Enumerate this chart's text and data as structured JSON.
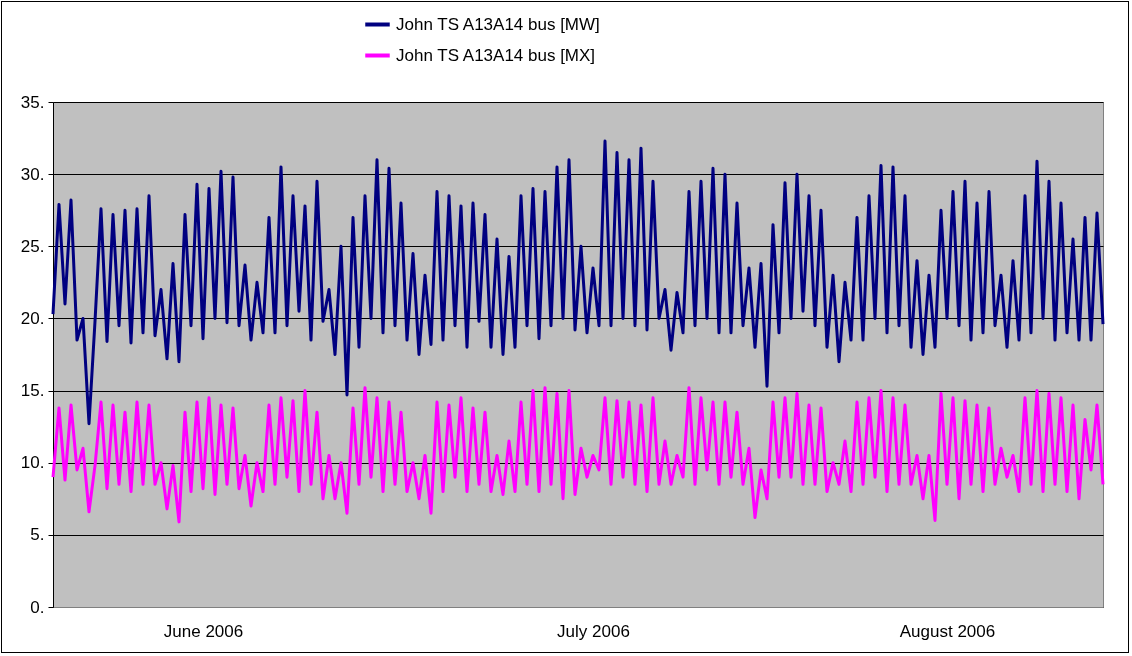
{
  "chart_data": {
    "type": "line",
    "categories": [
      null,
      null,
      null,
      null,
      null,
      null,
      null,
      null,
      null,
      null,
      null,
      null,
      null,
      null,
      null,
      null,
      null,
      null,
      null,
      null,
      null,
      null,
      null,
      null,
      null,
      "June 2006",
      null,
      null,
      null,
      null,
      null,
      null,
      null,
      null,
      null,
      null,
      null,
      null,
      null,
      null,
      null,
      null,
      null,
      null,
      null,
      null,
      null,
      null,
      null,
      null,
      null,
      null,
      null,
      null,
      null,
      null,
      null,
      null,
      null,
      null,
      null,
      null,
      null,
      null,
      null,
      null,
      null,
      null,
      null,
      null,
      null,
      null,
      null,
      null,
      null,
      null,
      null,
      null,
      null,
      null,
      null,
      null,
      null,
      null,
      null,
      null,
      null,
      null,
      null,
      null,
      "July 2006",
      null,
      null,
      null,
      null,
      null,
      null,
      null,
      null,
      null,
      null,
      null,
      null,
      null,
      null,
      null,
      null,
      null,
      null,
      null,
      null,
      null,
      null,
      null,
      null,
      null,
      null,
      null,
      null,
      null,
      null,
      null,
      null,
      null,
      null,
      null,
      null,
      null,
      null,
      null,
      null,
      null,
      null,
      null,
      null,
      null,
      null,
      null,
      null,
      null,
      null,
      null,
      null,
      null,
      null,
      null,
      null,
      null,
      null,
      "August 2006",
      null,
      null,
      null,
      null,
      null,
      null,
      null,
      null,
      null,
      null,
      null,
      null,
      null,
      null,
      null,
      null,
      null,
      null,
      null,
      null,
      null,
      null,
      null,
      null,
      null,
      null
    ],
    "series": [
      {
        "name": "John TS A13A14 bus [MW]",
        "color": "#000080",
        "values": [
          20.3,
          27.9,
          21.0,
          28.2,
          18.5,
          20.0,
          12.7,
          19.8,
          27.6,
          18.4,
          27.2,
          19.5,
          27.5,
          18.3,
          27.6,
          19.0,
          28.5,
          18.8,
          22.0,
          17.2,
          23.8,
          17.0,
          27.2,
          19.5,
          29.3,
          18.6,
          29.0,
          20.0,
          30.2,
          19.7,
          29.8,
          19.5,
          23.7,
          18.5,
          22.5,
          19.0,
          27.0,
          19.0,
          30.5,
          19.5,
          28.5,
          20.5,
          27.8,
          18.5,
          29.5,
          19.8,
          22.0,
          17.5,
          25.0,
          14.7,
          27.0,
          18.0,
          28.5,
          20.0,
          31.0,
          19.0,
          30.4,
          19.5,
          28.0,
          18.5,
          24.5,
          17.5,
          23.0,
          18.2,
          28.8,
          18.5,
          28.5,
          19.5,
          27.8,
          18.0,
          28.0,
          19.8,
          27.2,
          18.0,
          25.5,
          17.5,
          24.3,
          18.0,
          28.5,
          19.5,
          29.0,
          18.6,
          28.8,
          19.5,
          30.5,
          20.0,
          31.0,
          19.2,
          25.0,
          19.0,
          23.5,
          19.5,
          32.3,
          19.5,
          31.5,
          20.0,
          31.0,
          19.5,
          31.8,
          19.2,
          29.5,
          20.0,
          22.0,
          17.8,
          21.8,
          19.0,
          28.8,
          19.5,
          29.5,
          20.0,
          30.4,
          19.0,
          30.0,
          19.0,
          28.0,
          19.5,
          23.5,
          18.0,
          23.8,
          15.3,
          26.5,
          19.0,
          29.4,
          20.0,
          30.0,
          20.5,
          28.5,
          19.5,
          27.5,
          18.0,
          23.0,
          17.0,
          22.5,
          18.5,
          27.0,
          18.5,
          28.5,
          20.0,
          30.6,
          19.0,
          30.5,
          19.5,
          28.5,
          18.0,
          24.0,
          17.5,
          23.0,
          18.0,
          27.5,
          20.0,
          28.8,
          19.5,
          29.5,
          18.5,
          28.0,
          19.0,
          28.8,
          19.5,
          23.0,
          18.0,
          24.0,
          18.5,
          28.5,
          19.0,
          30.9,
          20.0,
          29.5,
          18.5,
          28.0,
          19.0,
          25.5,
          18.5,
          27.0,
          18.5,
          27.3,
          19.6
        ]
      },
      {
        "name": "John TS A13A14 bus [MX]",
        "color": "#ff00ff",
        "values": [
          9.0,
          13.8,
          8.8,
          14.0,
          9.5,
          11.0,
          6.6,
          9.8,
          14.2,
          8.2,
          14.0,
          8.5,
          13.5,
          8.0,
          14.2,
          8.5,
          14.0,
          8.5,
          10.0,
          6.8,
          9.8,
          5.9,
          13.5,
          8.0,
          14.2,
          8.2,
          14.5,
          7.8,
          14.0,
          8.5,
          13.8,
          8.2,
          10.5,
          7.0,
          10.0,
          8.0,
          14.0,
          8.5,
          14.5,
          9.0,
          14.3,
          8.0,
          15.0,
          8.5,
          13.5,
          7.5,
          10.5,
          7.5,
          10.0,
          6.5,
          13.8,
          8.5,
          15.2,
          9.0,
          14.5,
          8.0,
          14.2,
          8.5,
          13.5,
          8.0,
          10.0,
          7.5,
          10.5,
          6.5,
          14.2,
          8.0,
          14.0,
          9.0,
          14.5,
          8.0,
          13.8,
          8.5,
          13.5,
          8.0,
          10.5,
          7.8,
          11.5,
          8.0,
          14.2,
          8.5,
          15.0,
          8.0,
          15.2,
          8.5,
          14.8,
          7.5,
          15.0,
          7.8,
          11.0,
          9.0,
          10.5,
          9.5,
          14.5,
          8.5,
          14.3,
          9.0,
          14.2,
          8.5,
          14.0,
          8.0,
          14.5,
          8.5,
          11.5,
          8.5,
          10.5,
          9.0,
          15.2,
          8.5,
          14.5,
          9.5,
          14.2,
          8.5,
          14.2,
          9.0,
          13.5,
          8.5,
          11.0,
          6.2,
          9.5,
          7.5,
          14.2,
          9.0,
          14.5,
          9.0,
          14.8,
          8.5,
          14.0,
          8.5,
          13.8,
          8.0,
          10.0,
          8.5,
          11.5,
          8.0,
          14.2,
          8.5,
          14.5,
          9.0,
          15.0,
          8.0,
          14.5,
          8.5,
          14.0,
          8.5,
          10.5,
          7.5,
          10.5,
          6.0,
          14.8,
          8.5,
          14.5,
          7.5,
          14.3,
          8.5,
          14.0,
          8.0,
          13.8,
          8.5,
          11.0,
          9.0,
          10.5,
          8.0,
          14.5,
          8.5,
          15.0,
          8.0,
          14.8,
          8.5,
          14.5,
          8.0,
          14.0,
          7.5,
          13.0,
          9.5,
          14.0,
          8.5
        ]
      }
    ],
    "ylim": [
      0,
      35
    ],
    "yticks": [
      {
        "value": 0,
        "label": "0."
      },
      {
        "value": 5,
        "label": "5."
      },
      {
        "value": 10,
        "label": "10."
      },
      {
        "value": 15,
        "label": "15."
      },
      {
        "value": 20,
        "label": "20."
      },
      {
        "value": 25,
        "label": "25."
      },
      {
        "value": 30,
        "label": "30."
      },
      {
        "value": 35,
        "label": "35."
      }
    ],
    "grid": "y",
    "legend": "top",
    "marker": "none",
    "line_style": "solid"
  }
}
